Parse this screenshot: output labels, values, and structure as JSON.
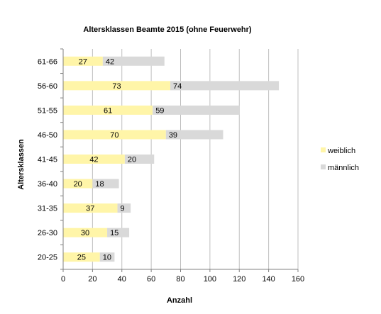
{
  "chart_data": {
    "type": "bar",
    "orientation": "horizontal",
    "stacked": true,
    "title": "Altersklassen Beamte 2015 (ohne Feuerwehr)",
    "xlabel": "Anzahl",
    "ylabel": "Altersklassen",
    "xlim": [
      0,
      160
    ],
    "xticks": [
      "0",
      "20",
      "40",
      "60",
      "80",
      "100",
      "120",
      "140",
      "160"
    ],
    "categories": [
      "20-25",
      "26-30",
      "31-35",
      "36-40",
      "41-45",
      "46-50",
      "51-55",
      "56-60",
      "61-66"
    ],
    "series": [
      {
        "name": "weiblich",
        "values": [
          25,
          30,
          37,
          20,
          42,
          70,
          61,
          73,
          27
        ]
      },
      {
        "name": "männlich",
        "values": [
          10,
          15,
          9,
          18,
          20,
          39,
          59,
          74,
          42
        ]
      }
    ],
    "colors": {
      "weiblich": "#FFF5A8",
      "männlich": "#D9D9D9",
      "grid": "#BFBFBF",
      "axis": "#808080"
    },
    "grid": "vertical",
    "legend_position": "right"
  }
}
